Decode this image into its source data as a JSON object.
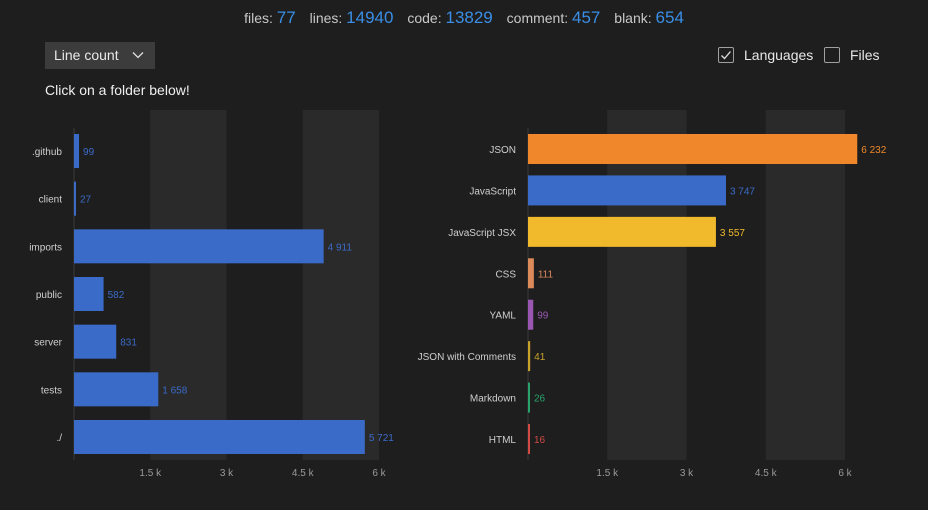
{
  "stats": [
    {
      "label": "files:",
      "value": "77"
    },
    {
      "label": "lines:",
      "value": "14940"
    },
    {
      "label": "code:",
      "value": "13829"
    },
    {
      "label": "comment:",
      "value": "457"
    },
    {
      "label": "blank:",
      "value": "654"
    }
  ],
  "controls": {
    "metric_select": "Line count",
    "hint": "Click on a folder below!",
    "languages_label": "Languages",
    "languages_checked": true,
    "files_label": "Files",
    "files_checked": false
  },
  "colors": {
    "background": "#1e1e1e",
    "band": "#2a2a2a",
    "accent_blue": "#3b6bc9",
    "stat_blue": "#3a8ee6"
  },
  "chart_data": [
    {
      "type": "bar",
      "orientation": "horizontal",
      "categories": [
        ".github",
        "client",
        "imports",
        "public",
        "server",
        "tests",
        "./"
      ],
      "values": [
        99,
        27,
        4911,
        582,
        831,
        1658,
        5721
      ],
      "value_labels": [
        "99",
        "27",
        "4 911",
        "582",
        "831",
        "1 658",
        "5 721"
      ],
      "colors": [
        "#3b6bc9",
        "#3b6bc9",
        "#3b6bc9",
        "#3b6bc9",
        "#3b6bc9",
        "#3b6bc9",
        "#3b6bc9"
      ],
      "xticks": [
        1500,
        3000,
        4500,
        6000
      ],
      "xtick_labels": [
        "1.5 k",
        "3 k",
        "4.5 k",
        "6 k"
      ],
      "xlim": [
        0,
        6000
      ]
    },
    {
      "type": "bar",
      "orientation": "horizontal",
      "categories": [
        "JSON",
        "JavaScript",
        "JavaScript JSX",
        "CSS",
        "YAML",
        "JSON with Comments",
        "Markdown",
        "HTML"
      ],
      "values": [
        6232,
        3747,
        3557,
        111,
        99,
        41,
        26,
        16
      ],
      "value_labels": [
        "6 232",
        "3 747",
        "3 557",
        "111",
        "99",
        "41",
        "26",
        "16"
      ],
      "colors": [
        "#f0882b",
        "#3b6bc9",
        "#f0ba2c",
        "#dd8a5a",
        "#9a57b1",
        "#c9a22a",
        "#28a36b",
        "#d24a43"
      ],
      "xticks": [
        1500,
        3000,
        4500,
        6000
      ],
      "xtick_labels": [
        "1.5 k",
        "3 k",
        "4.5 k",
        "6 k"
      ],
      "xlim": [
        0,
        6000
      ]
    }
  ]
}
